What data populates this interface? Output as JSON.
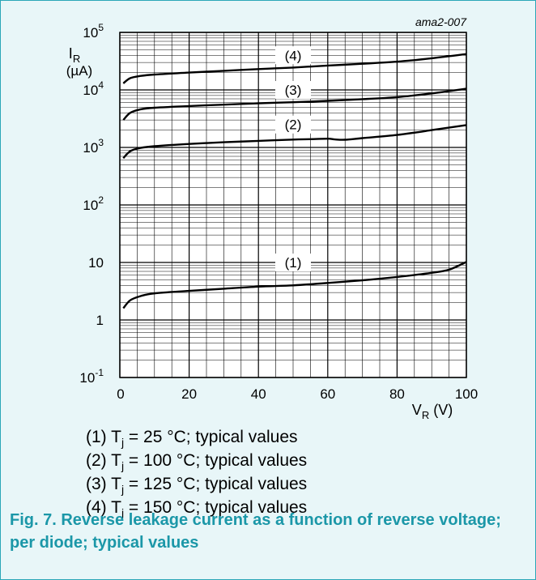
{
  "chart_data": {
    "type": "line",
    "tag": "ama2-007",
    "ylabel_main": "I",
    "ylabel_sub": "R",
    "ylabel_unit": "(µA)",
    "xlabel_main": "V",
    "xlabel_sub": "R",
    "xlabel_unit": " (V)",
    "xlim": [
      0,
      100
    ],
    "ylim": [
      0.1,
      100000
    ],
    "yscale": "log",
    "grid": true,
    "x_ticks": [
      "0",
      "20",
      "40",
      "60",
      "80",
      "100"
    ],
    "y_ticks": [
      {
        "base": "10",
        "exp": "-1"
      },
      {
        "base": "1",
        "exp": ""
      },
      {
        "base": "10",
        "exp": ""
      },
      {
        "base": "10",
        "exp": "2"
      },
      {
        "base": "10",
        "exp": "3"
      },
      {
        "base": "10",
        "exp": "4"
      },
      {
        "base": "10",
        "exp": "5"
      }
    ],
    "series": [
      {
        "label": "(1)",
        "label_x": 50,
        "label_y": 10,
        "x": [
          1,
          3,
          6,
          10,
          20,
          30,
          40,
          50,
          60,
          70,
          80,
          90,
          95,
          100
        ],
        "y": [
          1.6,
          2.2,
          2.6,
          2.9,
          3.2,
          3.5,
          3.8,
          4.0,
          4.4,
          4.9,
          5.6,
          6.6,
          7.5,
          10.2
        ]
      },
      {
        "label": "(2)",
        "label_x": 50,
        "label_y": 2500,
        "x": [
          1,
          3,
          6,
          10,
          20,
          30,
          40,
          50,
          55,
          60,
          62,
          65,
          70,
          80,
          90,
          100
        ],
        "y": [
          650,
          860,
          980,
          1050,
          1150,
          1230,
          1300,
          1370,
          1390,
          1420,
          1380,
          1360,
          1450,
          1650,
          2000,
          2450
        ]
      },
      {
        "label": "(3)",
        "label_x": 50,
        "label_y": 10000,
        "x": [
          1,
          3,
          6,
          10,
          20,
          30,
          40,
          50,
          60,
          70,
          80,
          90,
          100
        ],
        "y": [
          3000,
          4000,
          4600,
          4900,
          5250,
          5550,
          5850,
          6100,
          6450,
          6900,
          7500,
          8700,
          10500
        ]
      },
      {
        "label": "(4)",
        "label_x": 50,
        "label_y": 40000,
        "x": [
          1,
          3,
          6,
          10,
          20,
          30,
          40,
          50,
          60,
          70,
          80,
          90,
          100
        ],
        "y": [
          13000,
          16000,
          17500,
          18500,
          20000,
          21500,
          23000,
          24500,
          26500,
          28500,
          31000,
          35500,
          42000
        ]
      }
    ],
    "legend": [
      {
        "prefix": "(1) T",
        "sub": "j",
        "text": " = 25 °C; typical values"
      },
      {
        "prefix": "(2) T",
        "sub": "j",
        "text": " = 100 °C; typical values"
      },
      {
        "prefix": "(3) T",
        "sub": "j",
        "text": " = 125 °C; typical values"
      },
      {
        "prefix": "(4) T",
        "sub": "j",
        "text": " = 150 °C; typical values"
      }
    ],
    "caption": "Fig. 7. Reverse leakage current as a function of reverse voltage; per diode; typical values",
    "colors": {
      "frame": "#2aa7b8",
      "background": "#e8f6f8",
      "plot": "#ffffff",
      "caption": "#1b97a8",
      "ink": "#000000"
    }
  }
}
